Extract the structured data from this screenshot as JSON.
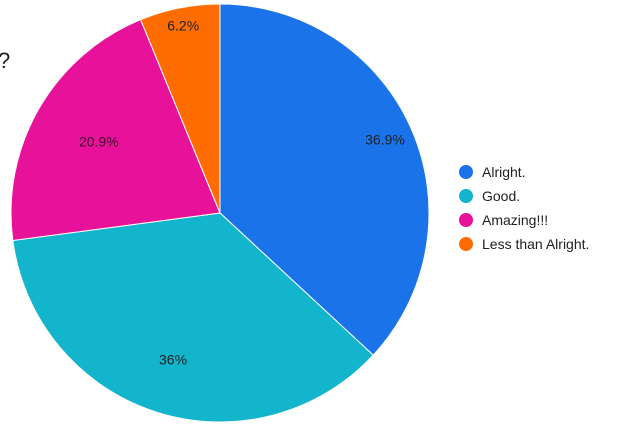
{
  "title_fragment": "?",
  "chart_data": {
    "type": "pie",
    "title": "?",
    "start_angle_deg": 0,
    "direction": "clockwise",
    "slices": [
      {
        "label": "Alright.",
        "value": 36.9,
        "display": "36.9%",
        "color": "#1a73e8"
      },
      {
        "label": "Good.",
        "value": 36.0,
        "display": "36%",
        "color": "#12b5cb"
      },
      {
        "label": "Amazing!!!",
        "value": 20.9,
        "display": "20.9%",
        "color": "#e8119a"
      },
      {
        "label": "Less than Alright.",
        "value": 6.2,
        "display": "6.2%",
        "color": "#ff6d01"
      }
    ],
    "legend_position": "right"
  }
}
